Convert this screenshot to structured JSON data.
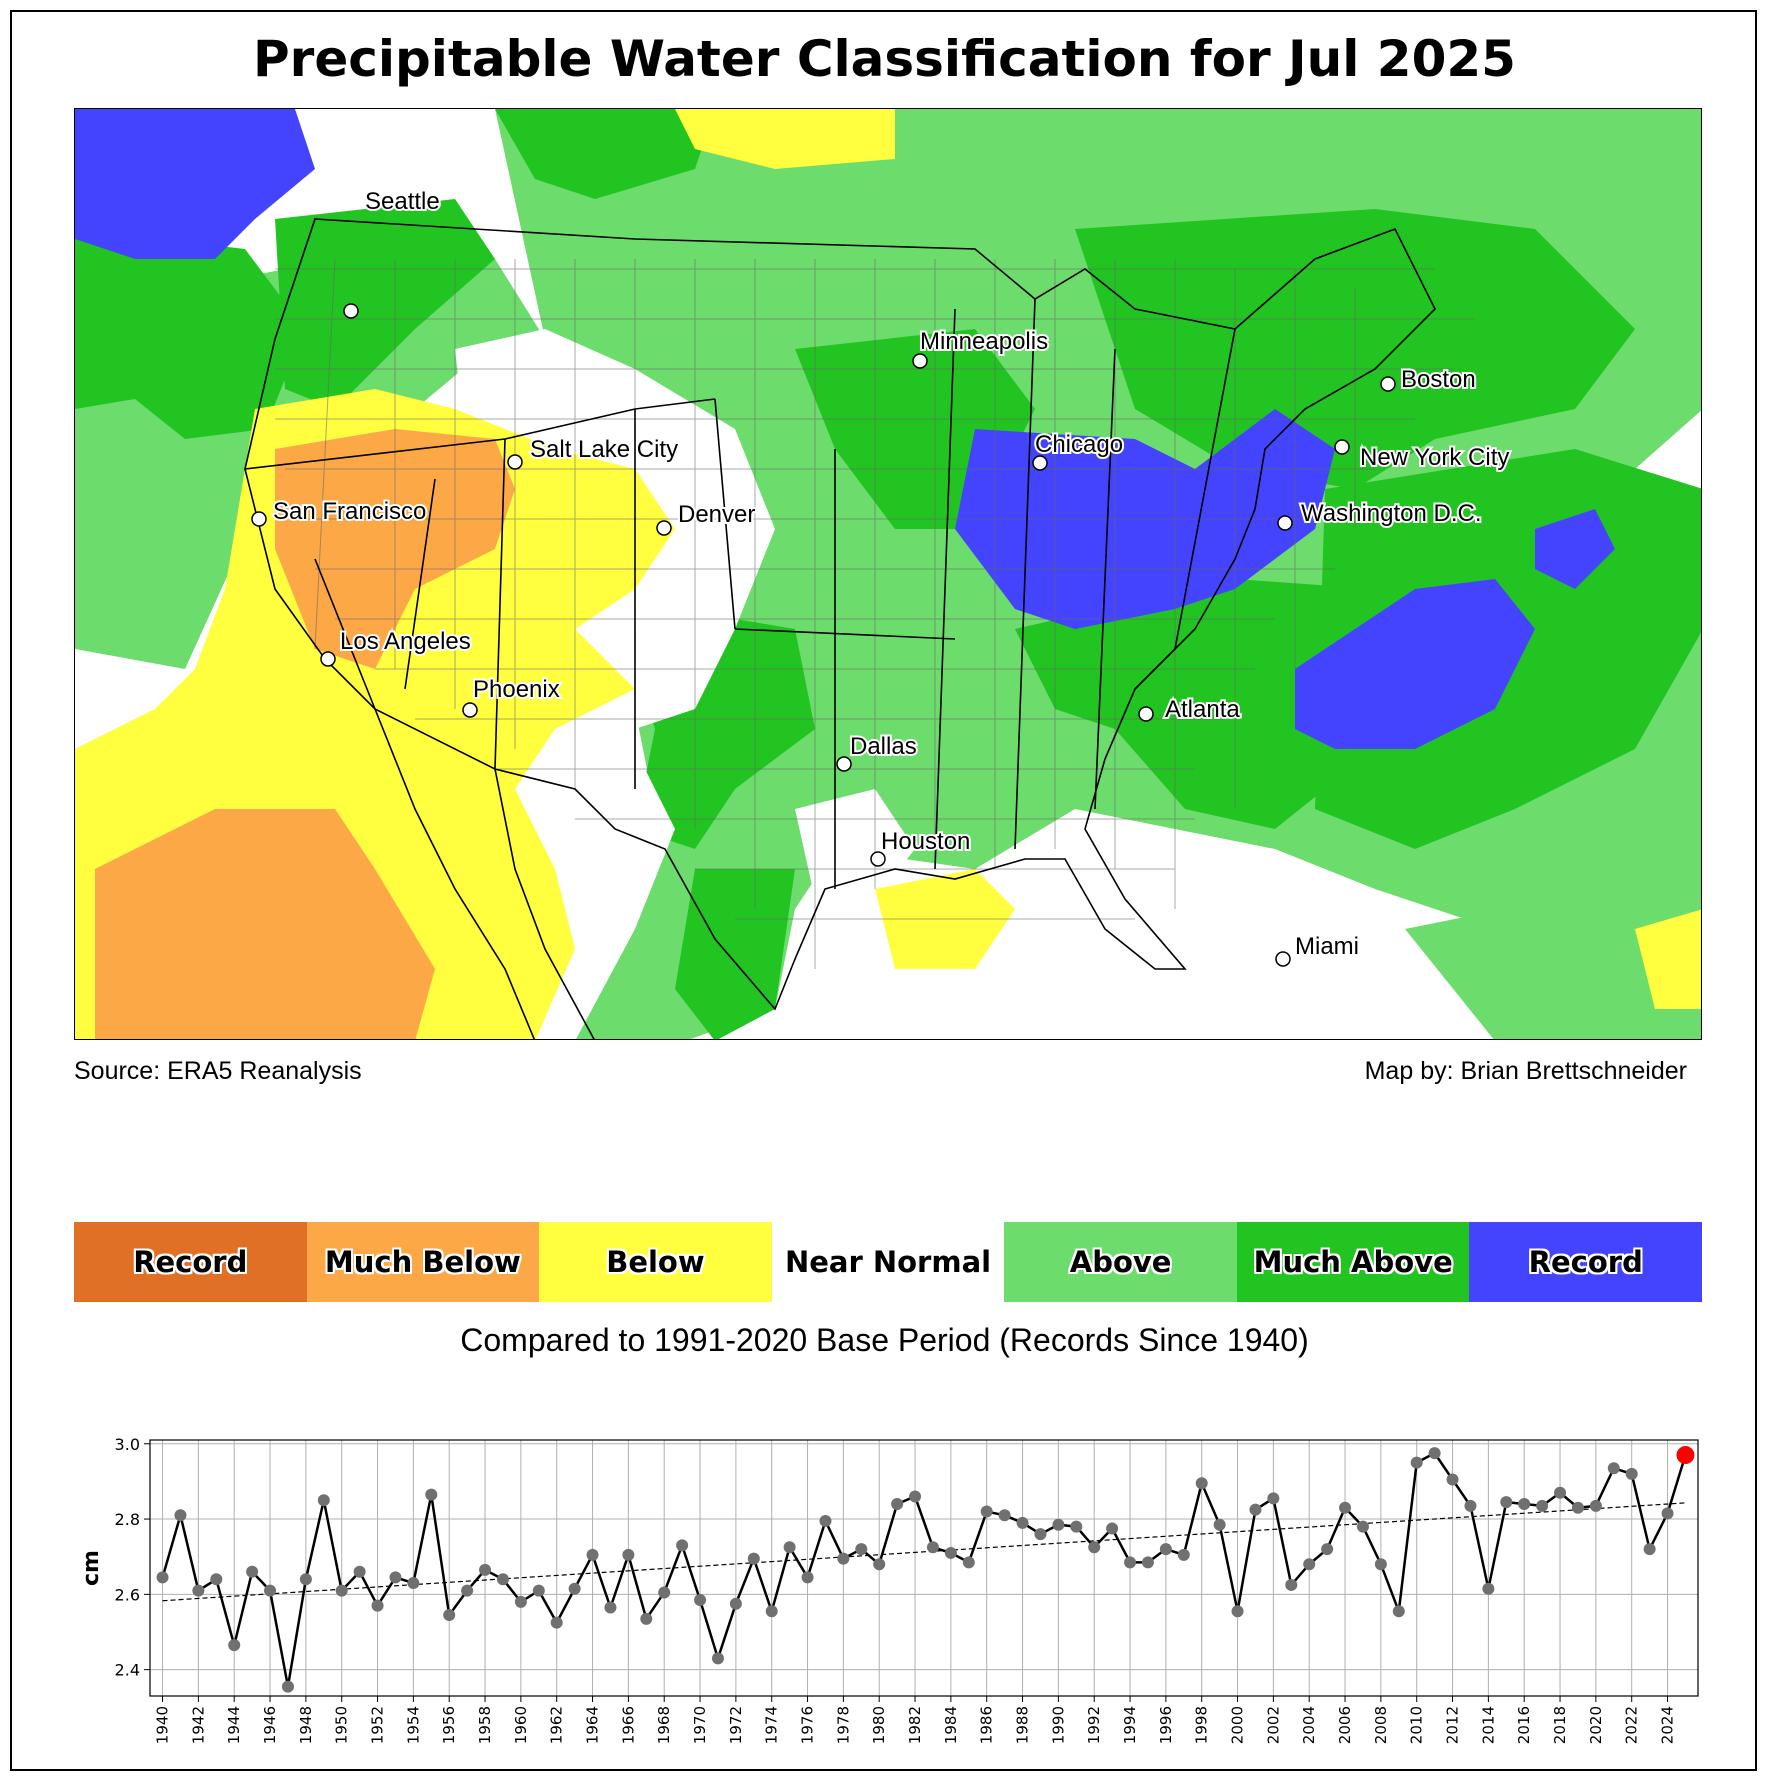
{
  "title": "Precipitable Water Classification for Jul 2025",
  "source": "Source: ERA5 Reanalysis",
  "author": "Map by: Brian Brettschneider",
  "subtitle": "Compared to 1991-2020 Base Period   (Records Since 1940)",
  "colors": {
    "record_low": "#e07026",
    "much_below": "#fca847",
    "below": "#ffff40",
    "near_normal": "#ffffff",
    "above": "#6cdc6c",
    "much_above": "#22c422",
    "record_high": "#4444ff"
  },
  "legend": [
    {
      "label": "Record",
      "color": "#e07026"
    },
    {
      "label": "Much Below",
      "color": "#fca847"
    },
    {
      "label": "Below",
      "color": "#ffff40"
    },
    {
      "label": "Near Normal",
      "color": "#ffffff"
    },
    {
      "label": "Above",
      "color": "#6cdc6c"
    },
    {
      "label": "Much Above",
      "color": "#22c422"
    },
    {
      "label": "Record",
      "color": "#4444ff"
    }
  ],
  "map": {
    "cities": [
      "Seattle",
      "Minneapolis",
      "Boston",
      "Salt Lake City",
      "Chicago",
      "New York City",
      "San Francisco",
      "Denver",
      "Washington D.C.",
      "Los Angeles",
      "Phoenix",
      "Atlanta",
      "Dallas",
      "Houston",
      "Miami"
    ]
  },
  "chart_data": {
    "type": "line",
    "ylabel": "cm",
    "ylim": [
      2.33,
      3.01
    ],
    "yticks": [
      2.4,
      2.6,
      2.8,
      3.0
    ],
    "xlim": [
      1939.3,
      2025.7
    ],
    "xticks": [
      1940,
      1942,
      1944,
      1946,
      1948,
      1950,
      1952,
      1954,
      1956,
      1958,
      1960,
      1962,
      1964,
      1966,
      1968,
      1970,
      1972,
      1974,
      1976,
      1978,
      1980,
      1982,
      1984,
      1986,
      1988,
      1990,
      1992,
      1994,
      1996,
      1998,
      2000,
      2002,
      2004,
      2006,
      2008,
      2010,
      2012,
      2014,
      2016,
      2018,
      2020,
      2022,
      2024
    ],
    "grid": true,
    "x_start": 1940,
    "values": [
      2.645,
      2.81,
      2.61,
      2.64,
      2.465,
      2.66,
      2.61,
      2.355,
      2.64,
      2.85,
      2.61,
      2.66,
      2.57,
      2.645,
      2.63,
      2.865,
      2.545,
      2.61,
      2.665,
      2.64,
      2.58,
      2.61,
      2.525,
      2.615,
      2.705,
      2.565,
      2.705,
      2.535,
      2.605,
      2.73,
      2.585,
      2.43,
      2.575,
      2.695,
      2.555,
      2.725,
      2.645,
      2.795,
      2.695,
      2.72,
      2.68,
      2.84,
      2.86,
      2.725,
      2.71,
      2.685,
      2.82,
      2.81,
      2.79,
      2.76,
      2.785,
      2.78,
      2.725,
      2.775,
      2.685,
      2.685,
      2.72,
      2.705,
      2.895,
      2.785,
      2.555,
      2.825,
      2.855,
      2.625,
      2.68,
      2.72,
      2.83,
      2.78,
      2.68,
      2.555,
      2.95,
      2.975,
      2.905,
      2.835,
      2.615,
      2.845,
      2.84,
      2.835,
      2.87,
      2.83,
      2.835,
      2.935,
      2.92,
      2.72,
      2.815,
      2.97
    ],
    "trend": [
      [
        1940,
        2.583
      ],
      [
        2025,
        2.843
      ]
    ],
    "highlight_year": 2025
  }
}
